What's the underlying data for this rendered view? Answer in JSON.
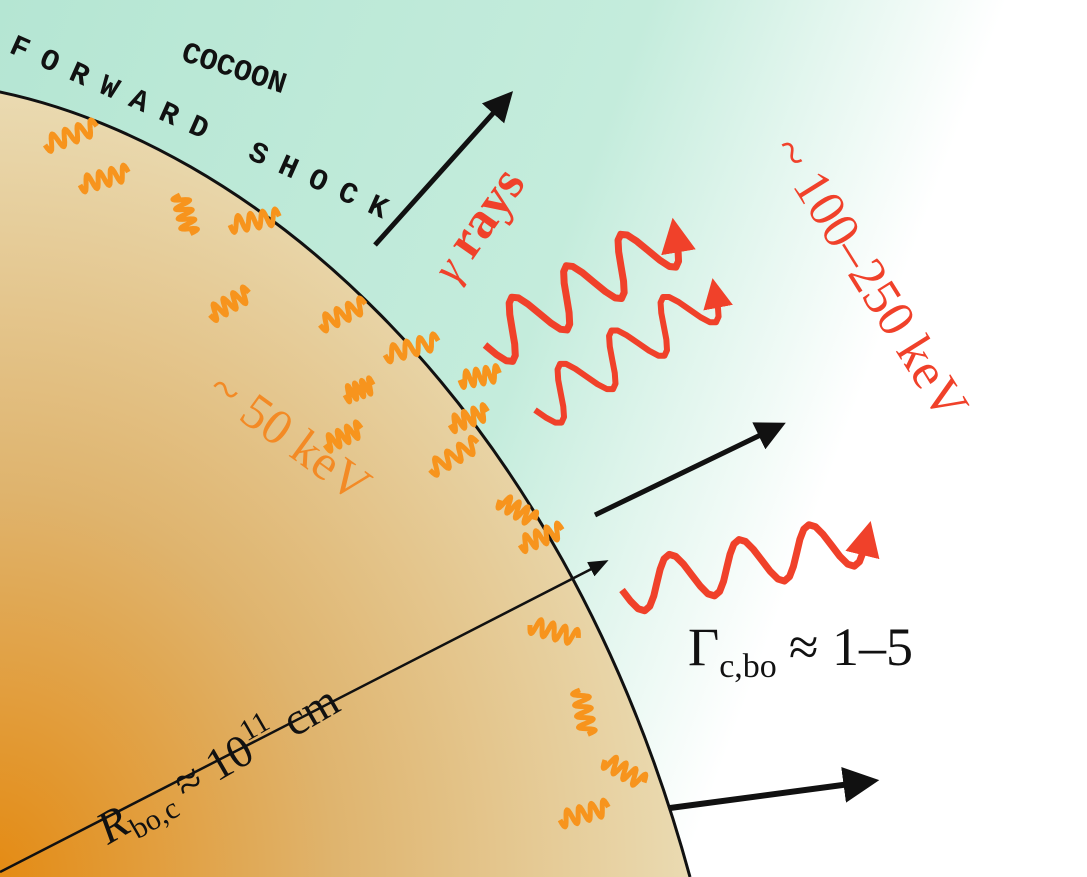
{
  "labels": {
    "cocoon": "COCOON",
    "forward_shock": "FORWARD SHOCK",
    "gamma": "γ",
    "rays": "rays",
    "hard_energy": "~ 100–250 keV",
    "soft_energy": "~ 50 keV",
    "radius": {
      "symbol": "R",
      "subscript": "bo,c",
      "relation": "≈ 10",
      "exponent": "11",
      "unit": "cm"
    },
    "lorentz": {
      "symbol": "Γ",
      "subscript": "c,bo",
      "relation": "≈ 1–5"
    }
  }
}
